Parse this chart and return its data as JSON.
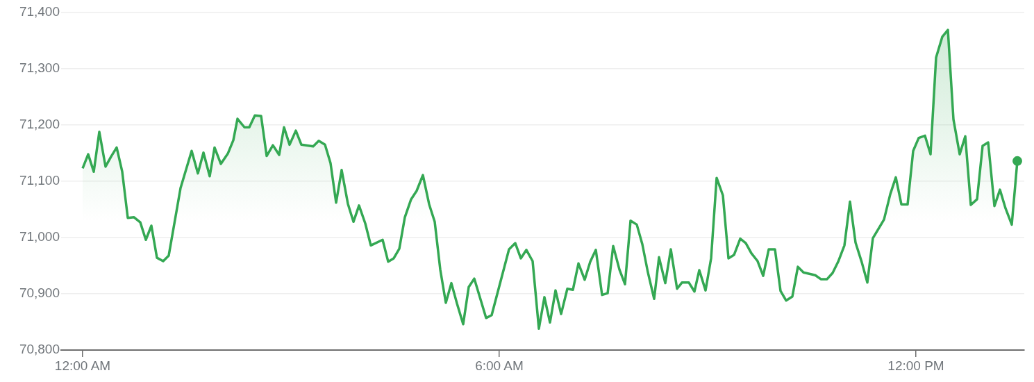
{
  "chart_data": {
    "type": "area",
    "x": [
      0.0,
      0.08,
      0.16,
      0.24,
      0.33,
      0.41,
      0.49,
      0.57,
      0.65,
      0.74,
      0.83,
      0.91,
      0.99,
      1.07,
      1.16,
      1.24,
      1.41,
      1.57,
      1.66,
      1.74,
      1.83,
      1.9,
      1.99,
      2.09,
      2.17,
      2.23,
      2.33,
      2.4,
      2.48,
      2.57,
      2.65,
      2.74,
      2.83,
      2.9,
      2.98,
      3.07,
      3.15,
      3.32,
      3.4,
      3.49,
      3.57,
      3.65,
      3.73,
      3.82,
      3.9,
      3.98,
      4.07,
      4.15,
      4.32,
      4.4,
      4.48,
      4.56,
      4.64,
      4.73,
      4.81,
      4.9,
      4.99,
      5.07,
      5.15,
      5.23,
      5.31,
      5.39,
      5.48,
      5.56,
      5.64,
      5.81,
      5.89,
      6.14,
      6.23,
      6.31,
      6.39,
      6.48,
      6.57,
      6.65,
      6.73,
      6.81,
      6.89,
      6.98,
      7.06,
      7.14,
      7.23,
      7.31,
      7.39,
      7.48,
      7.56,
      7.64,
      7.73,
      7.81,
      7.89,
      7.98,
      8.06,
      8.14,
      8.23,
      8.3,
      8.39,
      8.47,
      8.56,
      8.63,
      8.73,
      8.81,
      8.88,
      8.97,
      9.05,
      9.13,
      9.22,
      9.3,
      9.38,
      9.47,
      9.55,
      9.63,
      9.72,
      9.8,
      9.88,
      9.97,
      10.05,
      10.13,
      10.22,
      10.3,
      10.38,
      10.55,
      10.63,
      10.72,
      10.8,
      10.88,
      10.97,
      11.05,
      11.13,
      11.22,
      11.3,
      11.38,
      11.54,
      11.63,
      11.71,
      11.79,
      11.88,
      11.96,
      12.04,
      12.13,
      12.21,
      12.29,
      12.38,
      12.46,
      12.54,
      12.63,
      12.71,
      12.79,
      12.88,
      12.96,
      13.04,
      13.13,
      13.21,
      13.29,
      13.38,
      13.46
    ],
    "series": [
      {
        "color": "#34a853",
        "values": [
          71123,
          71148,
          71117,
          71188,
          71126,
          71144,
          71160,
          71117,
          71035,
          71036,
          71027,
          70996,
          71021,
          70964,
          70958,
          70968,
          71088,
          71154,
          71114,
          71151,
          71109,
          71160,
          71131,
          71149,
          71173,
          71211,
          71196,
          71196,
          71217,
          71216,
          71145,
          71164,
          71147,
          71196,
          71165,
          71190,
          71165,
          71162,
          71172,
          71165,
          71132,
          71062,
          71120,
          71060,
          71028,
          71057,
          71025,
          70986,
          70996,
          70957,
          70963,
          70980,
          71036,
          71068,
          71083,
          71111,
          71059,
          71028,
          70943,
          70884,
          70919,
          70883,
          70846,
          70912,
          70927,
          70857,
          70862,
          70979,
          70990,
          70963,
          70978,
          70958,
          70838,
          70894,
          70849,
          70906,
          70864,
          70909,
          70907,
          70954,
          70925,
          70957,
          70978,
          70898,
          70901,
          70985,
          70943,
          70917,
          71030,
          71023,
          70988,
          70938,
          70891,
          70965,
          70919,
          70979,
          70909,
          70920,
          70920,
          70904,
          70942,
          70906,
          70963,
          71106,
          71075,
          70963,
          70969,
          70998,
          70990,
          70972,
          70958,
          70932,
          70979,
          70979,
          70905,
          70888,
          70895,
          70948,
          70938,
          70933,
          70926,
          70926,
          70937,
          70957,
          70986,
          71064,
          70991,
          70956,
          70920,
          70999,
          71032,
          71077,
          71107,
          71059,
          71059,
          71154,
          71177,
          71181,
          71148,
          71320,
          71357,
          71369,
          71210,
          71148,
          71180,
          71058,
          71068,
          71163,
          71169,
          71056,
          71085,
          71052,
          71023,
          71136
        ]
      }
    ],
    "xlim": [
      -0.31,
      13.56
    ],
    "xticks": [
      {
        "value": 0,
        "label": "12:00 AM"
      },
      {
        "value": 6,
        "label": "6:00 AM"
      },
      {
        "value": 12,
        "label": "12:00 PM"
      }
    ],
    "ylim": [
      70800,
      71400
    ],
    "yticks": [
      {
        "value": 70800,
        "label": "70,800"
      },
      {
        "value": 70900,
        "label": "70,900"
      },
      {
        "value": 71000,
        "label": "71,000"
      },
      {
        "value": 71100,
        "label": "71,100"
      },
      {
        "value": 71200,
        "label": "71,200"
      },
      {
        "value": 71300,
        "label": "71,300"
      },
      {
        "value": 71400,
        "label": "71,400"
      }
    ],
    "grid": "y",
    "legend": false
  }
}
